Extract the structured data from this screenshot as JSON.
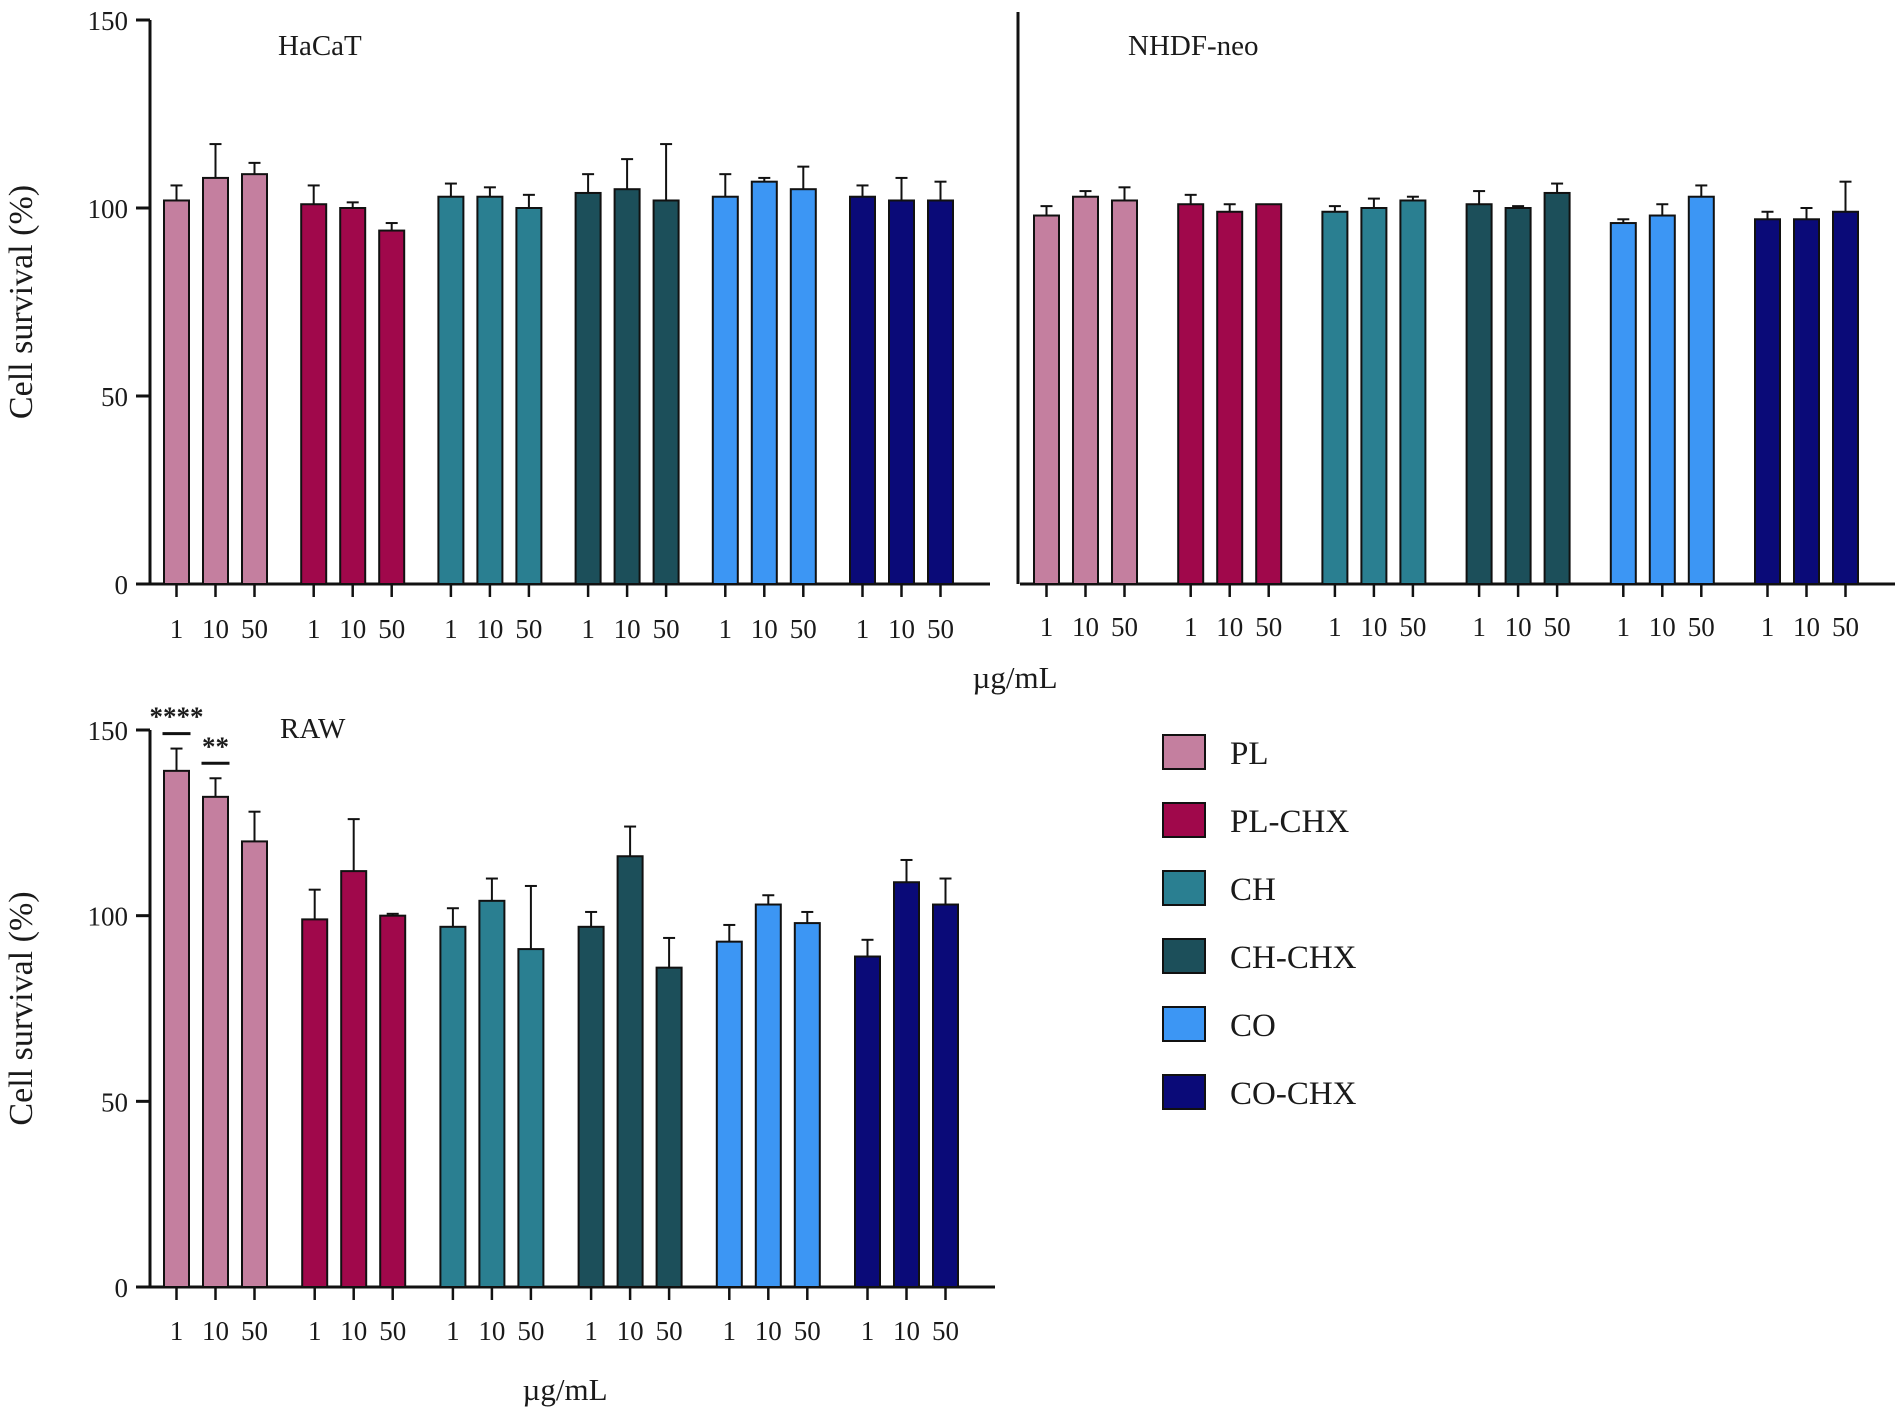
{
  "figure": {
    "width": 1902,
    "height": 1407
  },
  "colors": {
    "PL": "#c47f9f",
    "PL-CHX": "#a0084b",
    "CH": "#2a7f91",
    "CH-CHX": "#1c4f5a",
    "CO": "#3c96f4",
    "CO-CHX": "#0a0a78",
    "axis": "#111111"
  },
  "chart_data": [
    {
      "type": "bar",
      "panel": "HaCaT",
      "title": "HaCaT",
      "ylabel": "Cell survival (%)",
      "xlabel": "µg/mL",
      "ylim": [
        0,
        150
      ],
      "yticks": [
        0,
        50,
        100,
        150
      ],
      "categories": [
        "1",
        "10",
        "50"
      ],
      "series": [
        {
          "name": "PL",
          "values": [
            102,
            108,
            109
          ],
          "errors": [
            4,
            9,
            3
          ]
        },
        {
          "name": "PL-CHX",
          "values": [
            101,
            100,
            94
          ],
          "errors": [
            5,
            1.5,
            2
          ]
        },
        {
          "name": "CH",
          "values": [
            103,
            103,
            100
          ],
          "errors": [
            3.5,
            2.5,
            3.5
          ]
        },
        {
          "name": "CH-CHX",
          "values": [
            104,
            105,
            102
          ],
          "errors": [
            5,
            8,
            15
          ]
        },
        {
          "name": "CO",
          "values": [
            103,
            107,
            105
          ],
          "errors": [
            6,
            1,
            6
          ]
        },
        {
          "name": "CO-CHX",
          "values": [
            103,
            102,
            102
          ],
          "errors": [
            3,
            6,
            5
          ]
        }
      ],
      "significance": []
    },
    {
      "type": "bar",
      "panel": "NHDF-neo",
      "title": "NHDF-neo",
      "ylabel": "",
      "xlabel": "",
      "ylim": [
        0,
        150
      ],
      "yticks": [],
      "categories": [
        "1",
        "10",
        "50"
      ],
      "series": [
        {
          "name": "PL",
          "values": [
            98,
            103,
            102
          ],
          "errors": [
            2.5,
            1.5,
            3.5
          ]
        },
        {
          "name": "PL-CHX",
          "values": [
            101,
            99,
            101
          ],
          "errors": [
            2.5,
            2,
            0
          ]
        },
        {
          "name": "CH",
          "values": [
            99,
            100,
            102
          ],
          "errors": [
            1.5,
            2.5,
            1
          ]
        },
        {
          "name": "CH-CHX",
          "values": [
            101,
            100,
            104
          ],
          "errors": [
            3.5,
            0.5,
            2.5
          ]
        },
        {
          "name": "CO",
          "values": [
            96,
            98,
            103
          ],
          "errors": [
            1,
            3,
            3
          ]
        },
        {
          "name": "CO-CHX",
          "values": [
            97,
            97,
            99
          ],
          "errors": [
            2,
            3,
            8
          ]
        }
      ],
      "significance": []
    },
    {
      "type": "bar",
      "panel": "RAW",
      "title": "RAW",
      "ylabel": "Cell survival (%)",
      "xlabel": "µg/mL",
      "ylim": [
        0,
        150
      ],
      "yticks": [
        0,
        50,
        100,
        150
      ],
      "categories": [
        "1",
        "10",
        "50"
      ],
      "series": [
        {
          "name": "PL",
          "values": [
            139,
            132,
            120
          ],
          "errors": [
            6,
            5,
            8
          ]
        },
        {
          "name": "PL-CHX",
          "values": [
            99,
            112,
            100
          ],
          "errors": [
            8,
            14,
            0.5
          ]
        },
        {
          "name": "CH",
          "values": [
            97,
            104,
            91
          ],
          "errors": [
            5,
            6,
            17
          ]
        },
        {
          "name": "CH-CHX",
          "values": [
            97,
            116,
            86
          ],
          "errors": [
            4,
            8,
            8
          ]
        },
        {
          "name": "CO",
          "values": [
            93,
            103,
            98
          ],
          "errors": [
            4.5,
            2.5,
            3
          ]
        },
        {
          "name": "CO-CHX",
          "values": [
            89,
            109,
            103
          ],
          "errors": [
            4.5,
            6,
            7
          ]
        }
      ],
      "significance": [
        {
          "series": "PL",
          "category": "1",
          "label": "****"
        },
        {
          "series": "PL",
          "category": "10",
          "label": "**"
        }
      ]
    }
  ],
  "legend": {
    "items": [
      "PL",
      "PL-CHX",
      "CH",
      "CH-CHX",
      "CO",
      "CO-CHX"
    ]
  }
}
